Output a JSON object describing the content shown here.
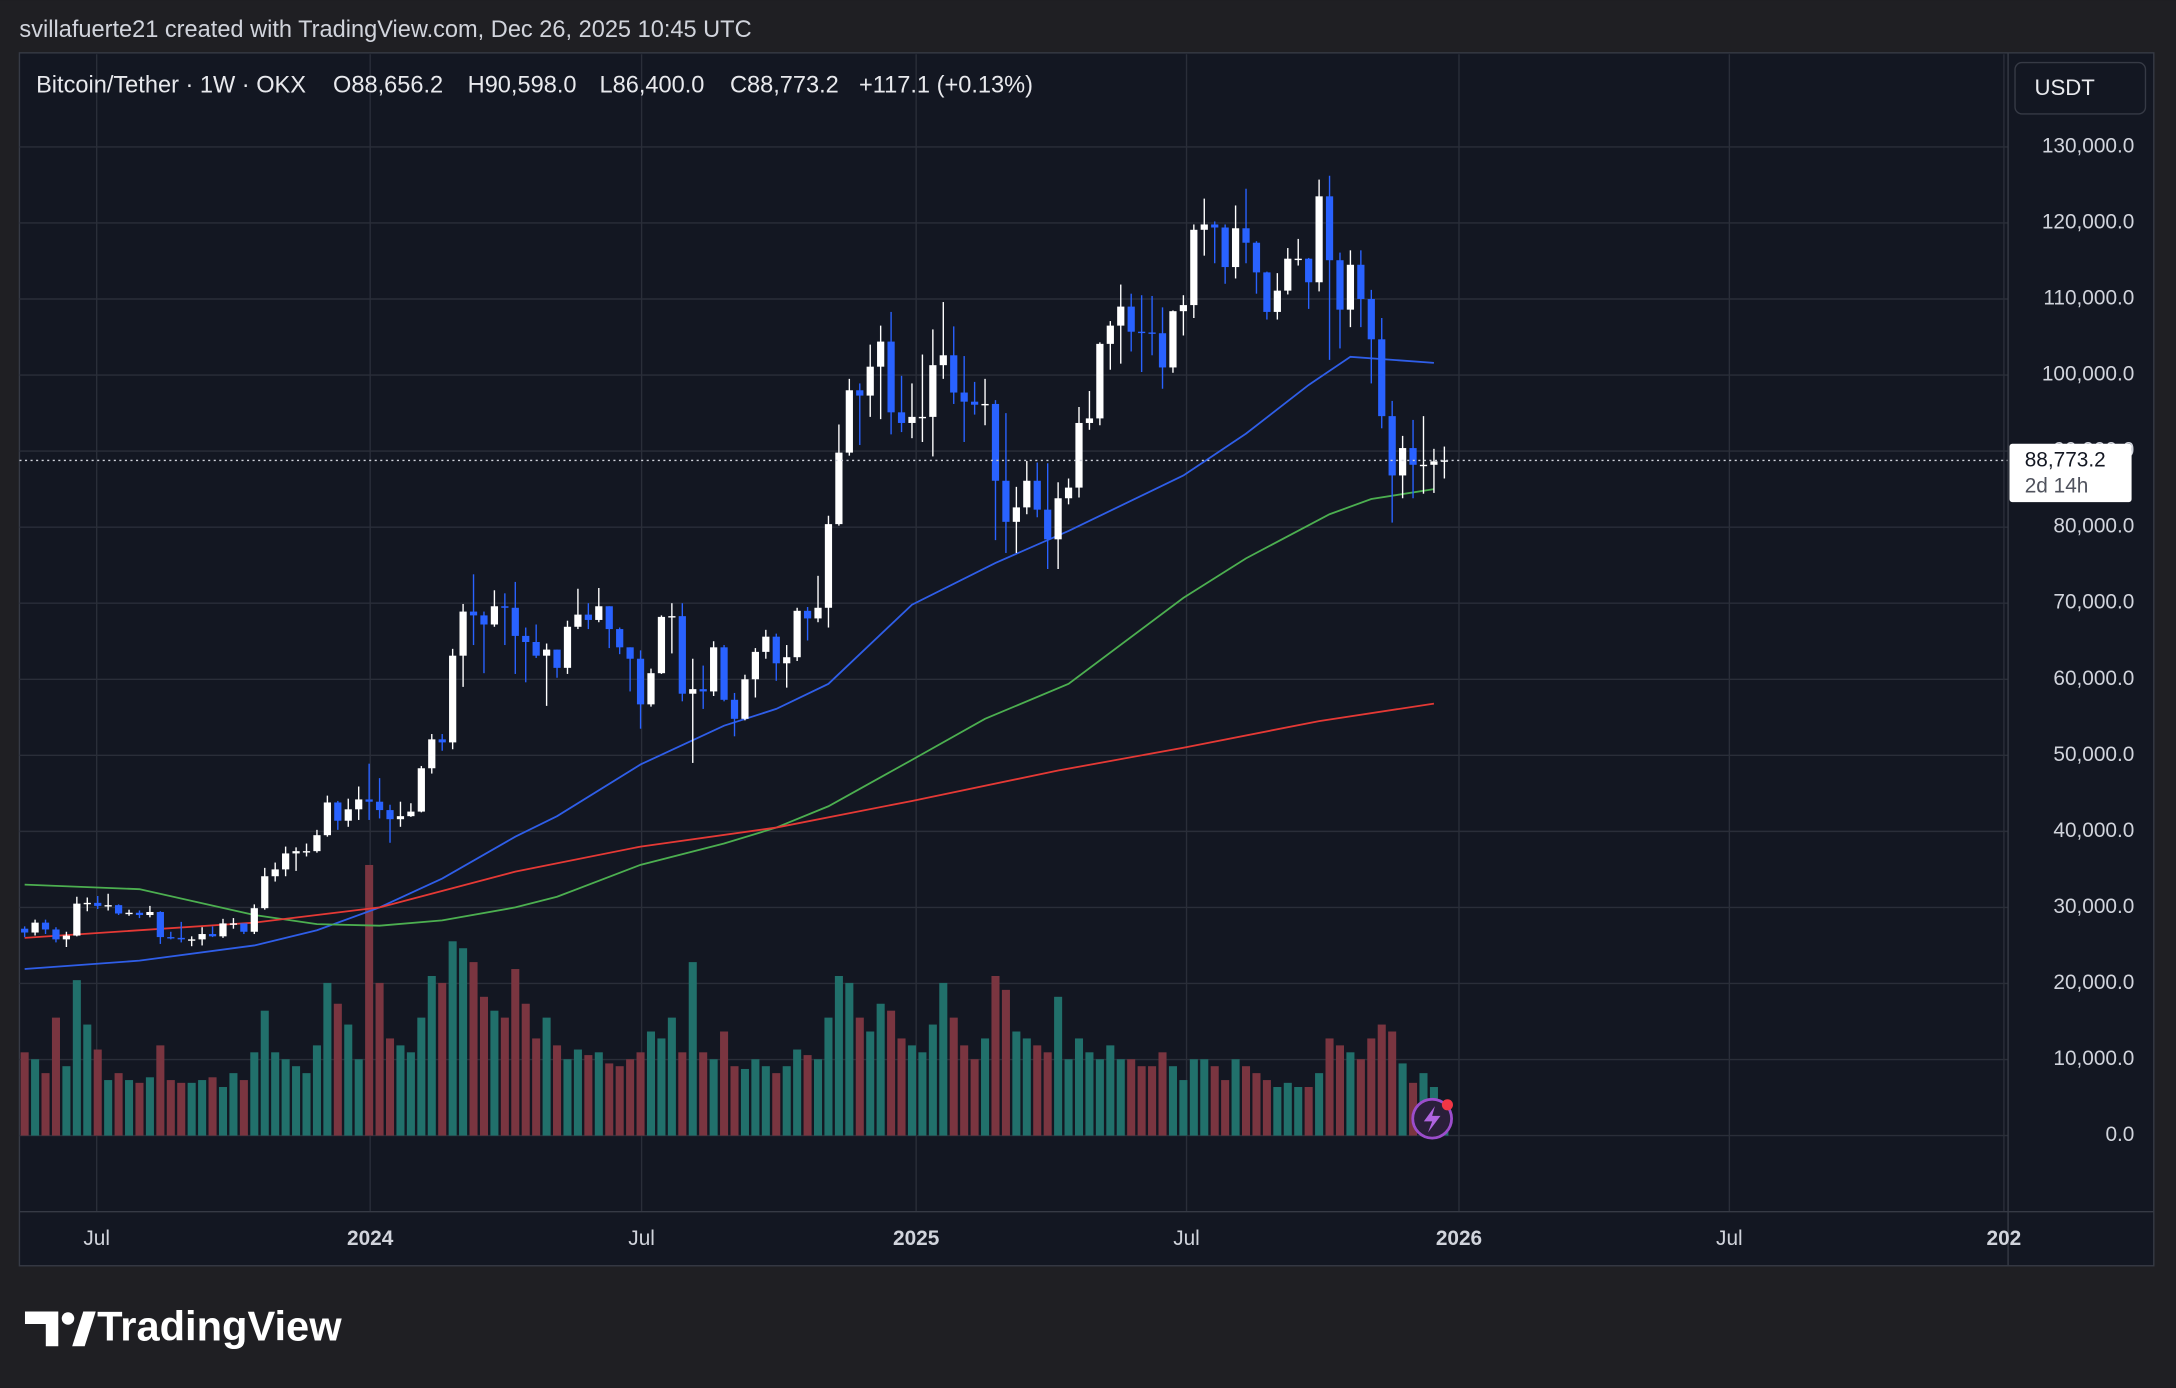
{
  "attribution": "svillafuerte21 created with TradingView.com, Dec 26, 2025 10:45 UTC",
  "header": {
    "symbol": "Bitcoin/Tether · 1W · OKX",
    "open": "O88,656.2",
    "high": "H90,598.0",
    "low": "L86,400.0",
    "close": "C88,773.2",
    "change": "+117.1 (+0.13%)"
  },
  "footer": {
    "brand": "TradingView"
  },
  "chart_data": {
    "type": "candlestick",
    "currency": "USDT",
    "grid": true,
    "up_color": "#ffffff",
    "down_color": "#2962ff",
    "xlim": [
      -0.5,
      190
    ],
    "xticks": [
      {
        "value": 6.9,
        "label": "Jul"
      },
      {
        "value": 33.1,
        "label": "2024"
      },
      {
        "value": 59.1,
        "label": "Jul"
      },
      {
        "value": 85.4,
        "label": "2025"
      },
      {
        "value": 111.3,
        "label": "Jul"
      },
      {
        "value": 137.4,
        "label": "2026"
      },
      {
        "value": 163.3,
        "label": "Jul"
      },
      {
        "value": 189.6,
        "label": "202"
      }
    ],
    "ylim": [
      -10000,
      142000
    ],
    "yticks": [
      {
        "value": 0,
        "label": "0.0"
      },
      {
        "value": 10000,
        "label": "10,000.0"
      },
      {
        "value": 20000,
        "label": "20,000.0"
      },
      {
        "value": 30000,
        "label": "30,000.0"
      },
      {
        "value": 40000,
        "label": "40,000.0"
      },
      {
        "value": 50000,
        "label": "50,000.0"
      },
      {
        "value": 60000,
        "label": "60,000.0"
      },
      {
        "value": 70000,
        "label": "70,000.0"
      },
      {
        "value": 80000,
        "label": "80,000.0"
      },
      {
        "value": 90000,
        "label": "90,000.0"
      },
      {
        "value": 100000,
        "label": "100,000.0"
      },
      {
        "value": 110000,
        "label": "110,000.0"
      },
      {
        "value": 120000,
        "label": "120,000.0"
      },
      {
        "value": 130000,
        "label": "130,000.0"
      }
    ],
    "open": [
      27200,
      26700,
      28000,
      27100,
      25800,
      26300,
      30500,
      30600,
      30200,
      30300,
      29200,
      29300,
      29000,
      29400,
      26100,
      26000,
      25800,
      25800,
      26500,
      26200,
      27900,
      27900,
      26800,
      29900,
      34100,
      35000,
      37100,
      37400,
      37400,
      39500,
      43800,
      41400,
      42900,
      44200,
      43900,
      42800,
      41600,
      42000,
      42600,
      48300,
      52100,
      51700,
      63100,
      68900,
      68400,
      67200,
      69600,
      69400,
      65700,
      64900,
      63100,
      63900,
      61500,
      66900,
      68500,
      67800,
      69600,
      66600,
      64200,
      62700,
      56700,
      60800,
      68200,
      68300,
      58100,
      58700,
      58400,
      64200,
      57300,
      54800,
      60000,
      63600,
      65600,
      62100,
      62900,
      69000,
      68000,
      69400,
      80400,
      89800,
      98000,
      97300,
      101100,
      104400,
      95100,
      93700,
      94500,
      94500,
      101300,
      102600,
      97700,
      96500,
      96100,
      96200,
      86100,
      80700,
      82600,
      86100,
      82300,
      78400,
      83800,
      85200,
      93700,
      94300,
      104100,
      106500,
      109000,
      105700,
      105600,
      105500,
      101000,
      108400,
      109200,
      119100,
      119800,
      119400,
      114200,
      119300,
      117400,
      113500,
      108300,
      111100,
      115300,
      115300,
      112200,
      123500,
      115100,
      108600,
      114500,
      110000,
      104700,
      94600,
      86800,
      90400,
      88200,
      88200,
      88656.2
    ],
    "high": [
      27500,
      28400,
      28400,
      27400,
      26800,
      31400,
      31300,
      31500,
      31800,
      30400,
      29700,
      29600,
      30200,
      29500,
      26800,
      28100,
      26200,
      27400,
      27500,
      28500,
      28600,
      27900,
      30400,
      35200,
      35900,
      38000,
      37900,
      38400,
      40200,
      44700,
      44000,
      44300,
      45900,
      48900,
      47000,
      43500,
      43900,
      43700,
      48600,
      52800,
      52800,
      64000,
      69900,
      73800,
      68900,
      71700,
      71300,
      72800,
      66800,
      67200,
      64700,
      63900,
      67700,
      71900,
      70000,
      72000,
      69600,
      66800,
      64200,
      63800,
      61400,
      68400,
      70000,
      70000,
      62700,
      61800,
      65000,
      64500,
      58200,
      60600,
      64100,
      66500,
      66000,
      64500,
      69400,
      69500,
      73600,
      81500,
      93500,
      99500,
      98900,
      104000,
      106500,
      108300,
      99900,
      98900,
      102700,
      106000,
      109600,
      106400,
      102500,
      99100,
      99500,
      96700,
      95000,
      85300,
      88700,
      88500,
      88400,
      85900,
      86400,
      95800,
      97900,
      104300,
      107100,
      111900,
      110700,
      110500,
      110400,
      108900,
      108500,
      110500,
      119800,
      123200,
      120200,
      119800,
      122300,
      124500,
      117600,
      113600,
      113400,
      116700,
      117900,
      115400,
      125700,
      126200,
      116100,
      116400,
      116400,
      111200,
      107500,
      96600,
      92000,
      94100,
      94600,
      90300,
      90598
    ],
    "low": [
      26100,
      26300,
      26500,
      25400,
      24800,
      26200,
      29500,
      29800,
      29600,
      29000,
      28900,
      28600,
      28700,
      25200,
      25800,
      25400,
      24900,
      25000,
      26100,
      26000,
      27200,
      26500,
      26500,
      29700,
      33400,
      34100,
      34800,
      36700,
      37200,
      39300,
      40200,
      40600,
      41500,
      41500,
      41700,
      38500,
      40600,
      41900,
      42500,
      47600,
      50600,
      50800,
      59000,
      64500,
      60800,
      66900,
      64500,
      60700,
      59600,
      62800,
      56500,
      60200,
      60700,
      66600,
      66600,
      67500,
      64100,
      63300,
      58400,
      53500,
      56400,
      60700,
      63400,
      57100,
      49000,
      56100,
      57800,
      57100,
      52500,
      54600,
      57600,
      62700,
      59800,
      58900,
      62400,
      65100,
      67500,
      66800,
      80200,
      89400,
      90800,
      94500,
      94200,
      92200,
      92500,
      91700,
      91200,
      89300,
      99500,
      96200,
      91200,
      94800,
      93400,
      78300,
      76600,
      76600,
      81700,
      81300,
      74500,
      74500,
      83000,
      83900,
      92800,
      93400,
      100700,
      101500,
      103100,
      100400,
      102600,
      98200,
      100300,
      105200,
      107500,
      115700,
      114700,
      112000,
      112700,
      114700,
      110700,
      107300,
      107300,
      110600,
      114400,
      108700,
      111000,
      102000,
      103500,
      106300,
      106300,
      98900,
      93000,
      80600,
      83800,
      83800,
      84400,
      84500,
      86400
    ],
    "close": [
      26700,
      28000,
      27100,
      25800,
      26300,
      30500,
      30600,
      30200,
      30300,
      29200,
      29300,
      29000,
      29400,
      26100,
      26000,
      25800,
      25800,
      26500,
      26200,
      27900,
      27900,
      26800,
      29900,
      34100,
      35000,
      37100,
      37400,
      37400,
      39500,
      43800,
      41400,
      42900,
      44200,
      43900,
      42800,
      41600,
      42000,
      42600,
      48300,
      52100,
      51700,
      63100,
      68900,
      68400,
      67200,
      69600,
      69400,
      65700,
      64900,
      63100,
      63900,
      61500,
      66900,
      68500,
      67800,
      69600,
      66600,
      64200,
      62700,
      56700,
      60800,
      68200,
      68300,
      58100,
      58700,
      58400,
      64200,
      57300,
      54800,
      60000,
      63600,
      65600,
      62100,
      62900,
      69000,
      68000,
      69400,
      80400,
      89800,
      98000,
      97300,
      101100,
      104400,
      95100,
      93700,
      94500,
      94500,
      101300,
      102600,
      97700,
      96500,
      96100,
      96200,
      86100,
      80700,
      82600,
      86100,
      82300,
      78400,
      83800,
      85200,
      93700,
      94300,
      104100,
      106500,
      109000,
      105700,
      105600,
      105500,
      101000,
      108400,
      109200,
      119100,
      119800,
      119400,
      114200,
      119300,
      117400,
      113500,
      108300,
      111100,
      115300,
      115300,
      112200,
      123500,
      115100,
      108600,
      114500,
      110000,
      104700,
      94600,
      86800,
      90400,
      88200,
      88200,
      88656.2,
      88773.2
    ],
    "volume": {
      "up_color": "#21706b",
      "down_color": "#7a3540",
      "vlim": [
        0,
        200
      ],
      "values": [
        60,
        55,
        45,
        85,
        50,
        112,
        80,
        62,
        40,
        45,
        40,
        38,
        42,
        65,
        40,
        38,
        38,
        40,
        42,
        35,
        45,
        40,
        60,
        90,
        60,
        55,
        50,
        45,
        65,
        110,
        95,
        80,
        55,
        195,
        110,
        70,
        65,
        60,
        85,
        115,
        110,
        140,
        135,
        125,
        100,
        90,
        85,
        120,
        95,
        70,
        85,
        65,
        55,
        62,
        58,
        60,
        52,
        50,
        55,
        60,
        75,
        70,
        85,
        60,
        125,
        60,
        55,
        75,
        50,
        48,
        55,
        50,
        45,
        50,
        62,
        58,
        55,
        85,
        115,
        110,
        85,
        75,
        95,
        90,
        70,
        65,
        60,
        80,
        110,
        85,
        65,
        55,
        70,
        115,
        105,
        75,
        70,
        65,
        60,
        100,
        55,
        70,
        60,
        55,
        65,
        55,
        55,
        50,
        50,
        60,
        50,
        40,
        55,
        55,
        50,
        40,
        55,
        50,
        45,
        40,
        35,
        38,
        35,
        35,
        45,
        70,
        65,
        60,
        55,
        70,
        80,
        75,
        52,
        38,
        45,
        35,
        20
      ]
    },
    "moving_averages": [
      {
        "color": "#2f5ee8",
        "x": [
          0,
          11,
          22,
          28,
          34,
          40,
          47,
          51,
          59,
          67,
          72,
          77,
          85,
          93,
          100,
          111,
          117,
          123,
          127,
          135
        ],
        "values": [
          21900,
          23000,
          25000,
          27000,
          30000,
          33800,
          39300,
          42000,
          48800,
          53900,
          56100,
          59400,
          69800,
          75300,
          79500,
          86800,
          92300,
          98700,
          102400,
          101600
        ]
      },
      {
        "color": "#4caf50",
        "x": [
          0,
          11,
          22,
          28,
          34,
          40,
          47,
          51,
          59,
          67,
          72,
          77,
          85,
          92,
          100,
          111,
          117,
          125,
          129,
          135
        ],
        "values": [
          33000,
          32400,
          29000,
          27800,
          27600,
          28300,
          30000,
          31400,
          35600,
          38400,
          40500,
          43300,
          49400,
          54800,
          59400,
          70700,
          75900,
          81700,
          83700,
          85000
        ]
      },
      {
        "color": "#e53935",
        "x": [
          0,
          22,
          34,
          47,
          59,
          72,
          85,
          99,
          111,
          124,
          135
        ],
        "values": [
          26000,
          28000,
          30000,
          34700,
          38000,
          40500,
          44000,
          48000,
          51000,
          54500,
          56800
        ]
      }
    ],
    "last_price": {
      "value": 88773.2,
      "label": "88,773.2"
    },
    "countdown": "2d 14h"
  }
}
